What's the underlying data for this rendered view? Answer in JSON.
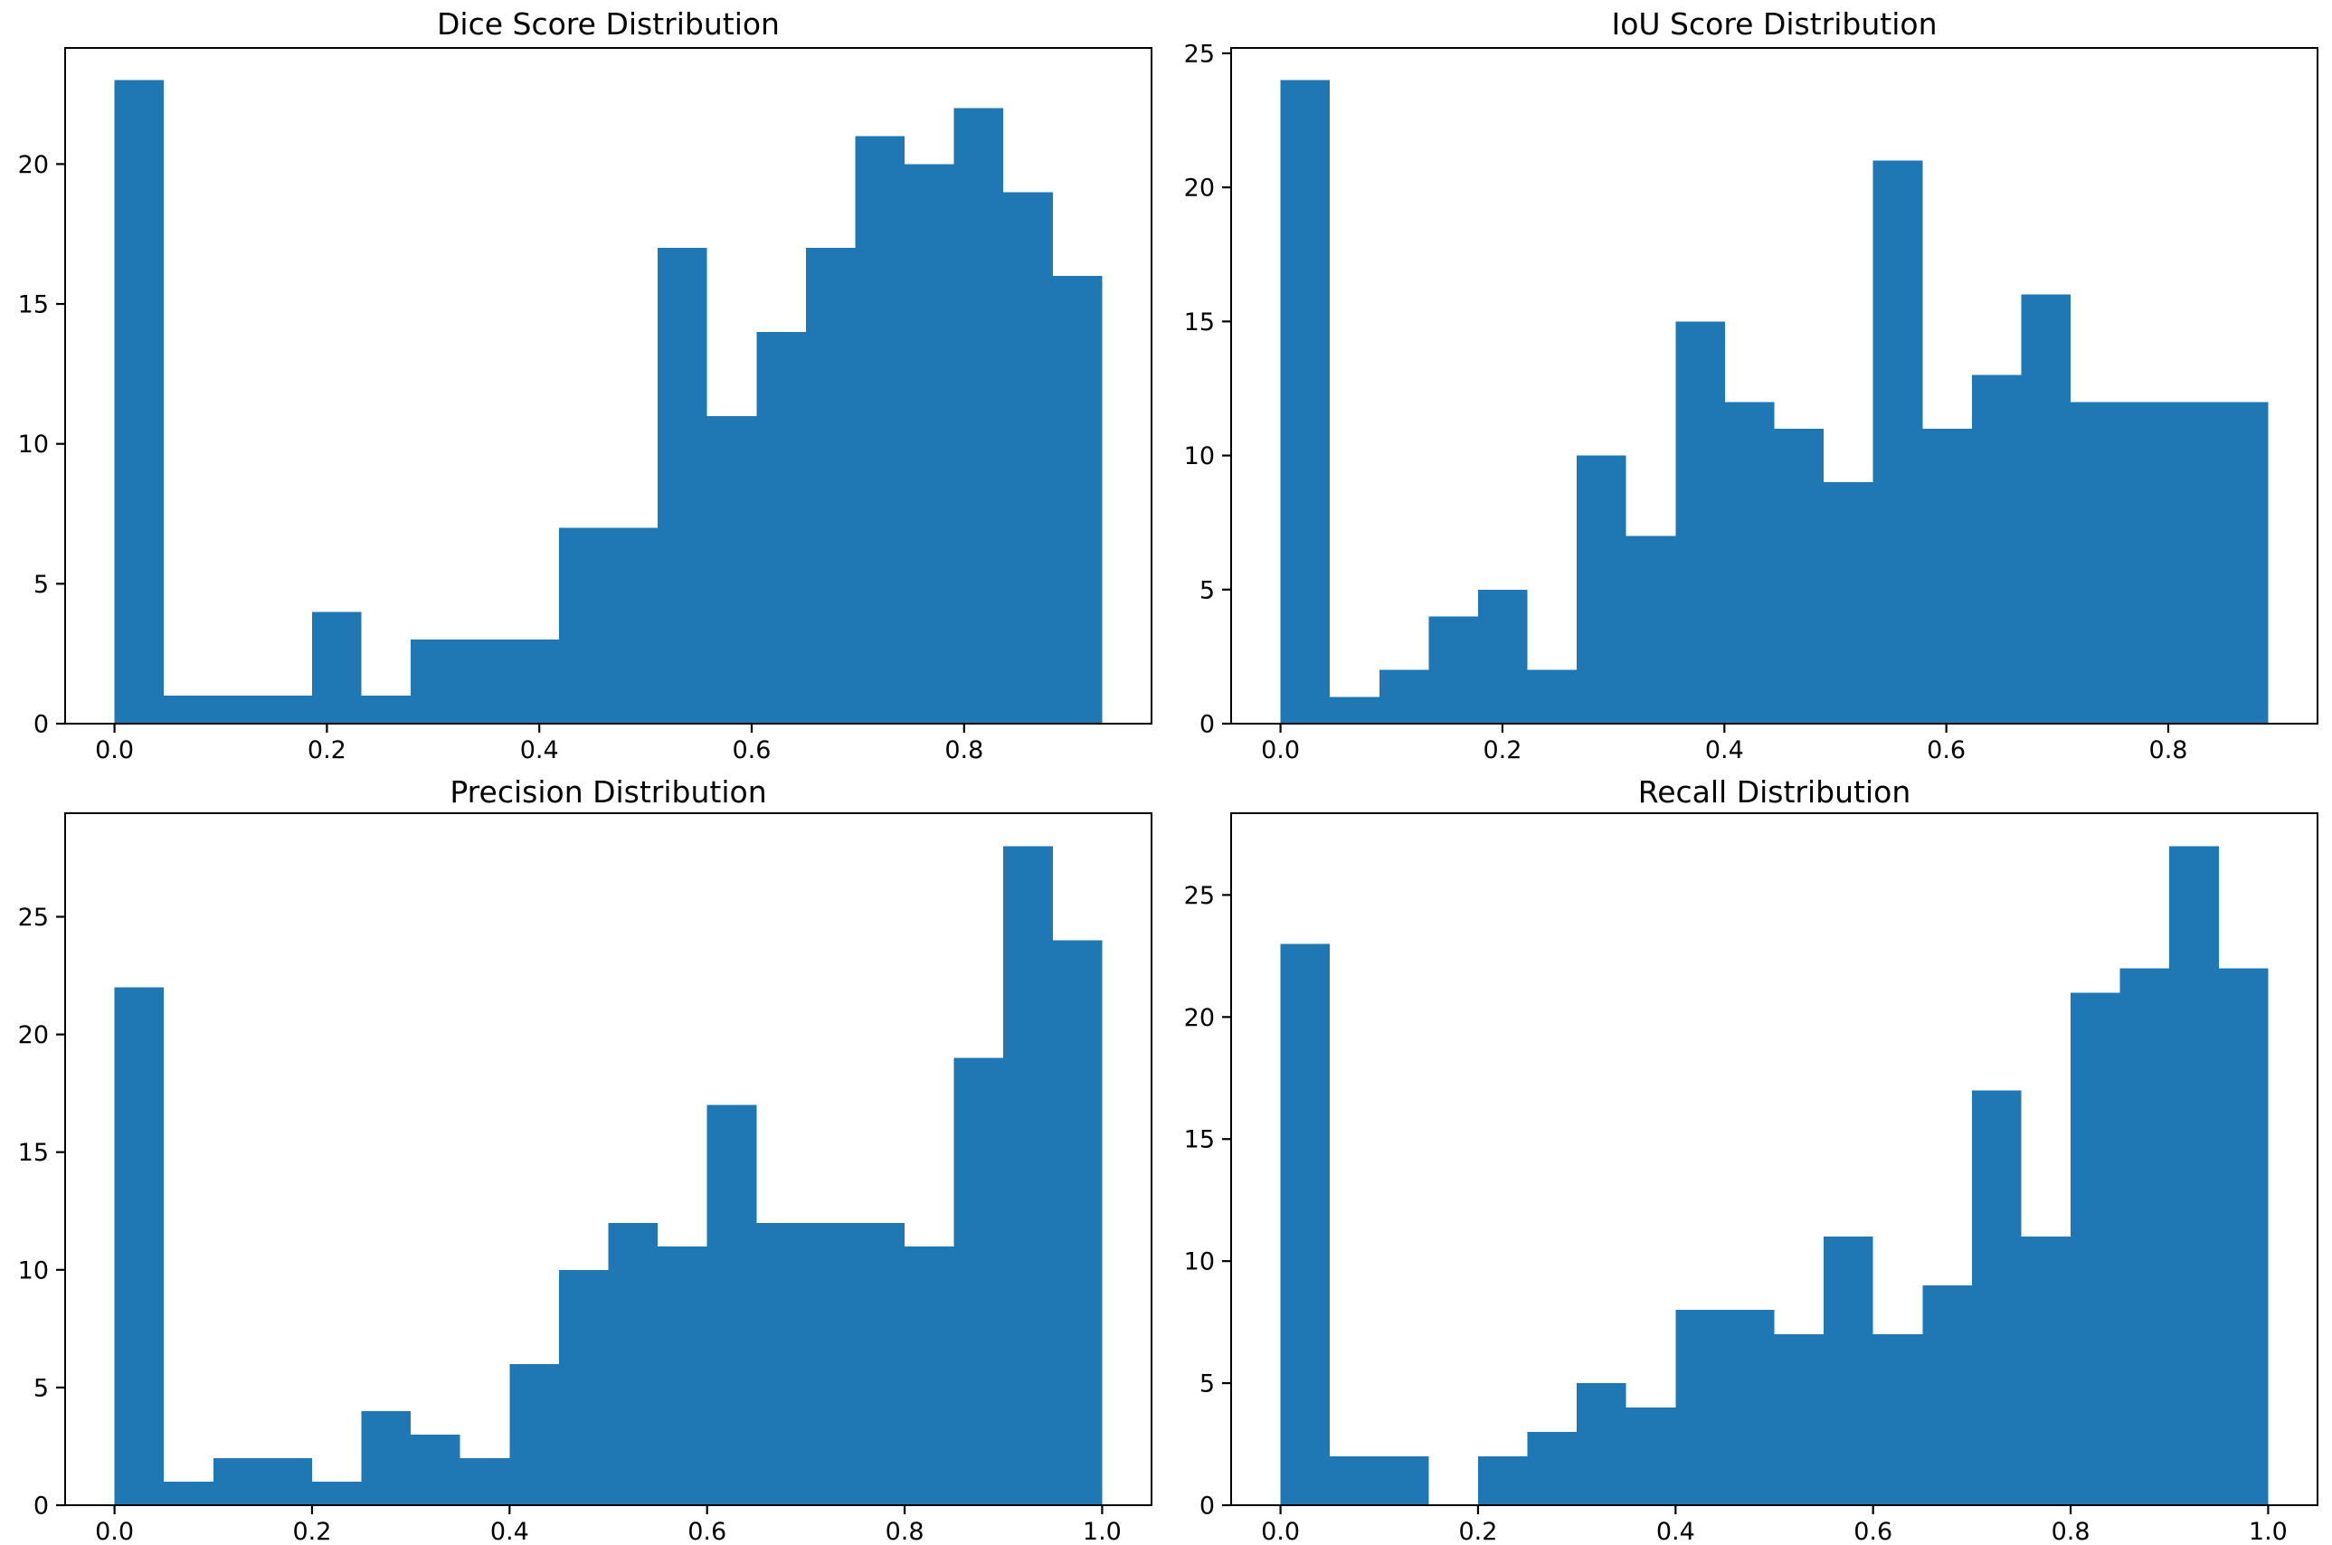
{
  "palette": {
    "bar_color": "#1f77b4",
    "axis_color": "#000000",
    "text_color": "#000000",
    "background": "#ffffff"
  },
  "figure": {
    "description": "2x2 grid of segmentation metric histograms",
    "rows": 2,
    "cols": 2
  },
  "chart_data": [
    {
      "type": "bar",
      "subtype": "histogram",
      "title": "Dice Score Distribution",
      "xlabel": "",
      "ylabel": "",
      "bin_start": 0.0,
      "bin_width": 0.0465,
      "values": [
        23,
        1,
        1,
        1,
        4,
        1,
        3,
        3,
        3,
        7,
        7,
        17,
        11,
        14,
        17,
        21,
        20,
        22,
        19,
        16
      ],
      "total_count": 211,
      "xlim": [
        -0.0465,
        0.9765
      ],
      "ylim": [
        0,
        24.15
      ],
      "xtick_values": [
        0.0,
        0.2,
        0.4,
        0.6,
        0.8
      ],
      "xtick_labels": [
        "0.0",
        "0.2",
        "0.4",
        "0.6",
        "0.8"
      ],
      "ytick_values": [
        0,
        5,
        10,
        15,
        20
      ],
      "ytick_labels": [
        "0",
        "5",
        "10",
        "15",
        "20"
      ],
      "grid": false,
      "legend": "none"
    },
    {
      "type": "bar",
      "subtype": "histogram",
      "title": "IoU Score Distribution",
      "xlabel": "",
      "ylabel": "",
      "bin_start": 0.0,
      "bin_width": 0.0445,
      "values": [
        24,
        1,
        2,
        4,
        5,
        2,
        10,
        7,
        15,
        12,
        11,
        9,
        21,
        11,
        13,
        16,
        12,
        12,
        12,
        12
      ],
      "total_count": 211,
      "xlim": [
        -0.0445,
        0.9345
      ],
      "ylim": [
        0,
        25.2
      ],
      "xtick_values": [
        0.0,
        0.2,
        0.4,
        0.6,
        0.8
      ],
      "xtick_labels": [
        "0.0",
        "0.2",
        "0.4",
        "0.6",
        "0.8"
      ],
      "ytick_values": [
        0,
        5,
        10,
        15,
        20,
        25
      ],
      "ytick_labels": [
        "0",
        "5",
        "10",
        "15",
        "20",
        "25"
      ],
      "grid": false,
      "legend": "none"
    },
    {
      "type": "bar",
      "subtype": "histogram",
      "title": "Precision Distribution",
      "xlabel": "",
      "ylabel": "",
      "bin_start": 0.0,
      "bin_width": 0.05,
      "values": [
        22,
        1,
        2,
        2,
        1,
        4,
        3,
        2,
        6,
        10,
        12,
        11,
        17,
        12,
        12,
        12,
        11,
        19,
        28,
        24
      ],
      "total_count": 211,
      "xlim": [
        -0.05,
        1.05
      ],
      "ylim": [
        0,
        29.4
      ],
      "xtick_values": [
        0.0,
        0.2,
        0.4,
        0.6,
        0.8,
        1.0
      ],
      "xtick_labels": [
        "0.0",
        "0.2",
        "0.4",
        "0.6",
        "0.8",
        "1.0"
      ],
      "ytick_values": [
        0,
        5,
        10,
        15,
        20,
        25
      ],
      "ytick_labels": [
        "0",
        "5",
        "10",
        "15",
        "20",
        "25"
      ],
      "grid": false,
      "legend": "none"
    },
    {
      "type": "bar",
      "subtype": "histogram",
      "title": "Recall Distribution",
      "xlabel": "",
      "ylabel": "",
      "bin_start": 0.0,
      "bin_width": 0.05,
      "values": [
        23,
        2,
        2,
        0,
        2,
        3,
        5,
        4,
        8,
        8,
        7,
        11,
        7,
        9,
        17,
        11,
        21,
        22,
        27,
        22
      ],
      "total_count": 211,
      "xlim": [
        -0.05,
        1.05
      ],
      "ylim": [
        0,
        28.35
      ],
      "xtick_values": [
        0.0,
        0.2,
        0.4,
        0.6,
        0.8,
        1.0
      ],
      "xtick_labels": [
        "0.0",
        "0.2",
        "0.4",
        "0.6",
        "0.8",
        "1.0"
      ],
      "ytick_values": [
        0,
        5,
        10,
        15,
        20,
        25
      ],
      "ytick_labels": [
        "0",
        "5",
        "10",
        "15",
        "20",
        "25"
      ],
      "grid": false,
      "legend": "none"
    }
  ]
}
